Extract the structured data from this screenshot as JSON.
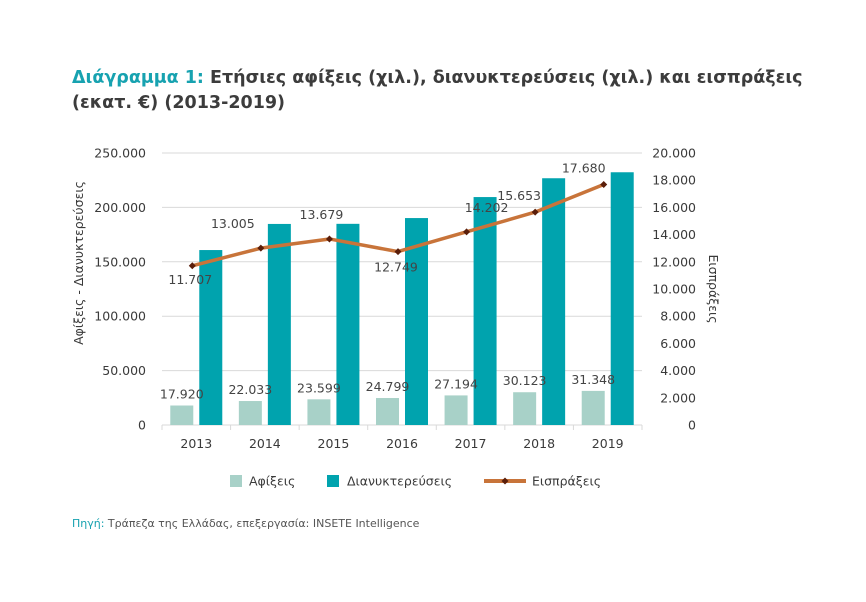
{
  "title": {
    "prefix": "Διάγραμμα 1:",
    "text": " Ετήσιες αφίξεις (χιλ.), διανυκτερεύσεις (χιλ.) και εισπράξεις (εκατ. €) (2013-2019)"
  },
  "source": {
    "prefix": "Πηγή:",
    "text": " Τράπεζα της Ελλάδας, επεξεργασία: INSETE Intelligence"
  },
  "colors": {
    "arrivals": "#a8d1c8",
    "overnights": "#00a3ae",
    "receipts": "#c8743a",
    "receipts_marker": "#5a1e0a",
    "grid": "#d9d9d9",
    "title_accent": "#17a2b0"
  },
  "chart_data": {
    "type": "bar",
    "title": "Ετήσιες αφίξεις (χιλ.), διανυκτερεύσεις (χιλ.) και εισπράξεις (εκατ. €) (2013-2019)",
    "categories": [
      "2013",
      "2014",
      "2015",
      "2016",
      "2017",
      "2018",
      "2019"
    ],
    "ylabel": "Αφίξεις - Διανυκτερεύσεις",
    "y2label": "Εισπράξεις",
    "ylim": [
      0,
      250000
    ],
    "y2lim": [
      0,
      20000
    ],
    "yticks": [
      "0",
      "50.000",
      "100.000",
      "150.000",
      "200.000",
      "250.000"
    ],
    "y2ticks": [
      "0",
      "2.000",
      "4.000",
      "6.000",
      "8.000",
      "10.000",
      "12.000",
      "14.000",
      "16.000",
      "18.000",
      "20.000"
    ],
    "grid": true,
    "legend_position": "bottom",
    "series": [
      {
        "name": "Αφίξεις",
        "type": "bar",
        "axis": "left",
        "values": [
          17920,
          22033,
          23599,
          24799,
          27194,
          30123,
          31348
        ],
        "labels": [
          "17.920",
          "22.033",
          "23.599",
          "24.799",
          "27.194",
          "30.123",
          "31.348"
        ]
      },
      {
        "name": "Διανυκτερεύσεις",
        "type": "bar",
        "axis": "left",
        "values": [
          160800,
          184800,
          184900,
          190200,
          209500,
          226800,
          232300
        ],
        "labels": []
      },
      {
        "name": "Εισπράξεις",
        "type": "line",
        "axis": "right",
        "values": [
          11707,
          13005,
          13679,
          12749,
          14202,
          15653,
          17680
        ],
        "labels": [
          "11.707",
          "13.005",
          "13.679",
          "12.749",
          "14.202",
          "15.653",
          "17.680"
        ]
      }
    ]
  }
}
